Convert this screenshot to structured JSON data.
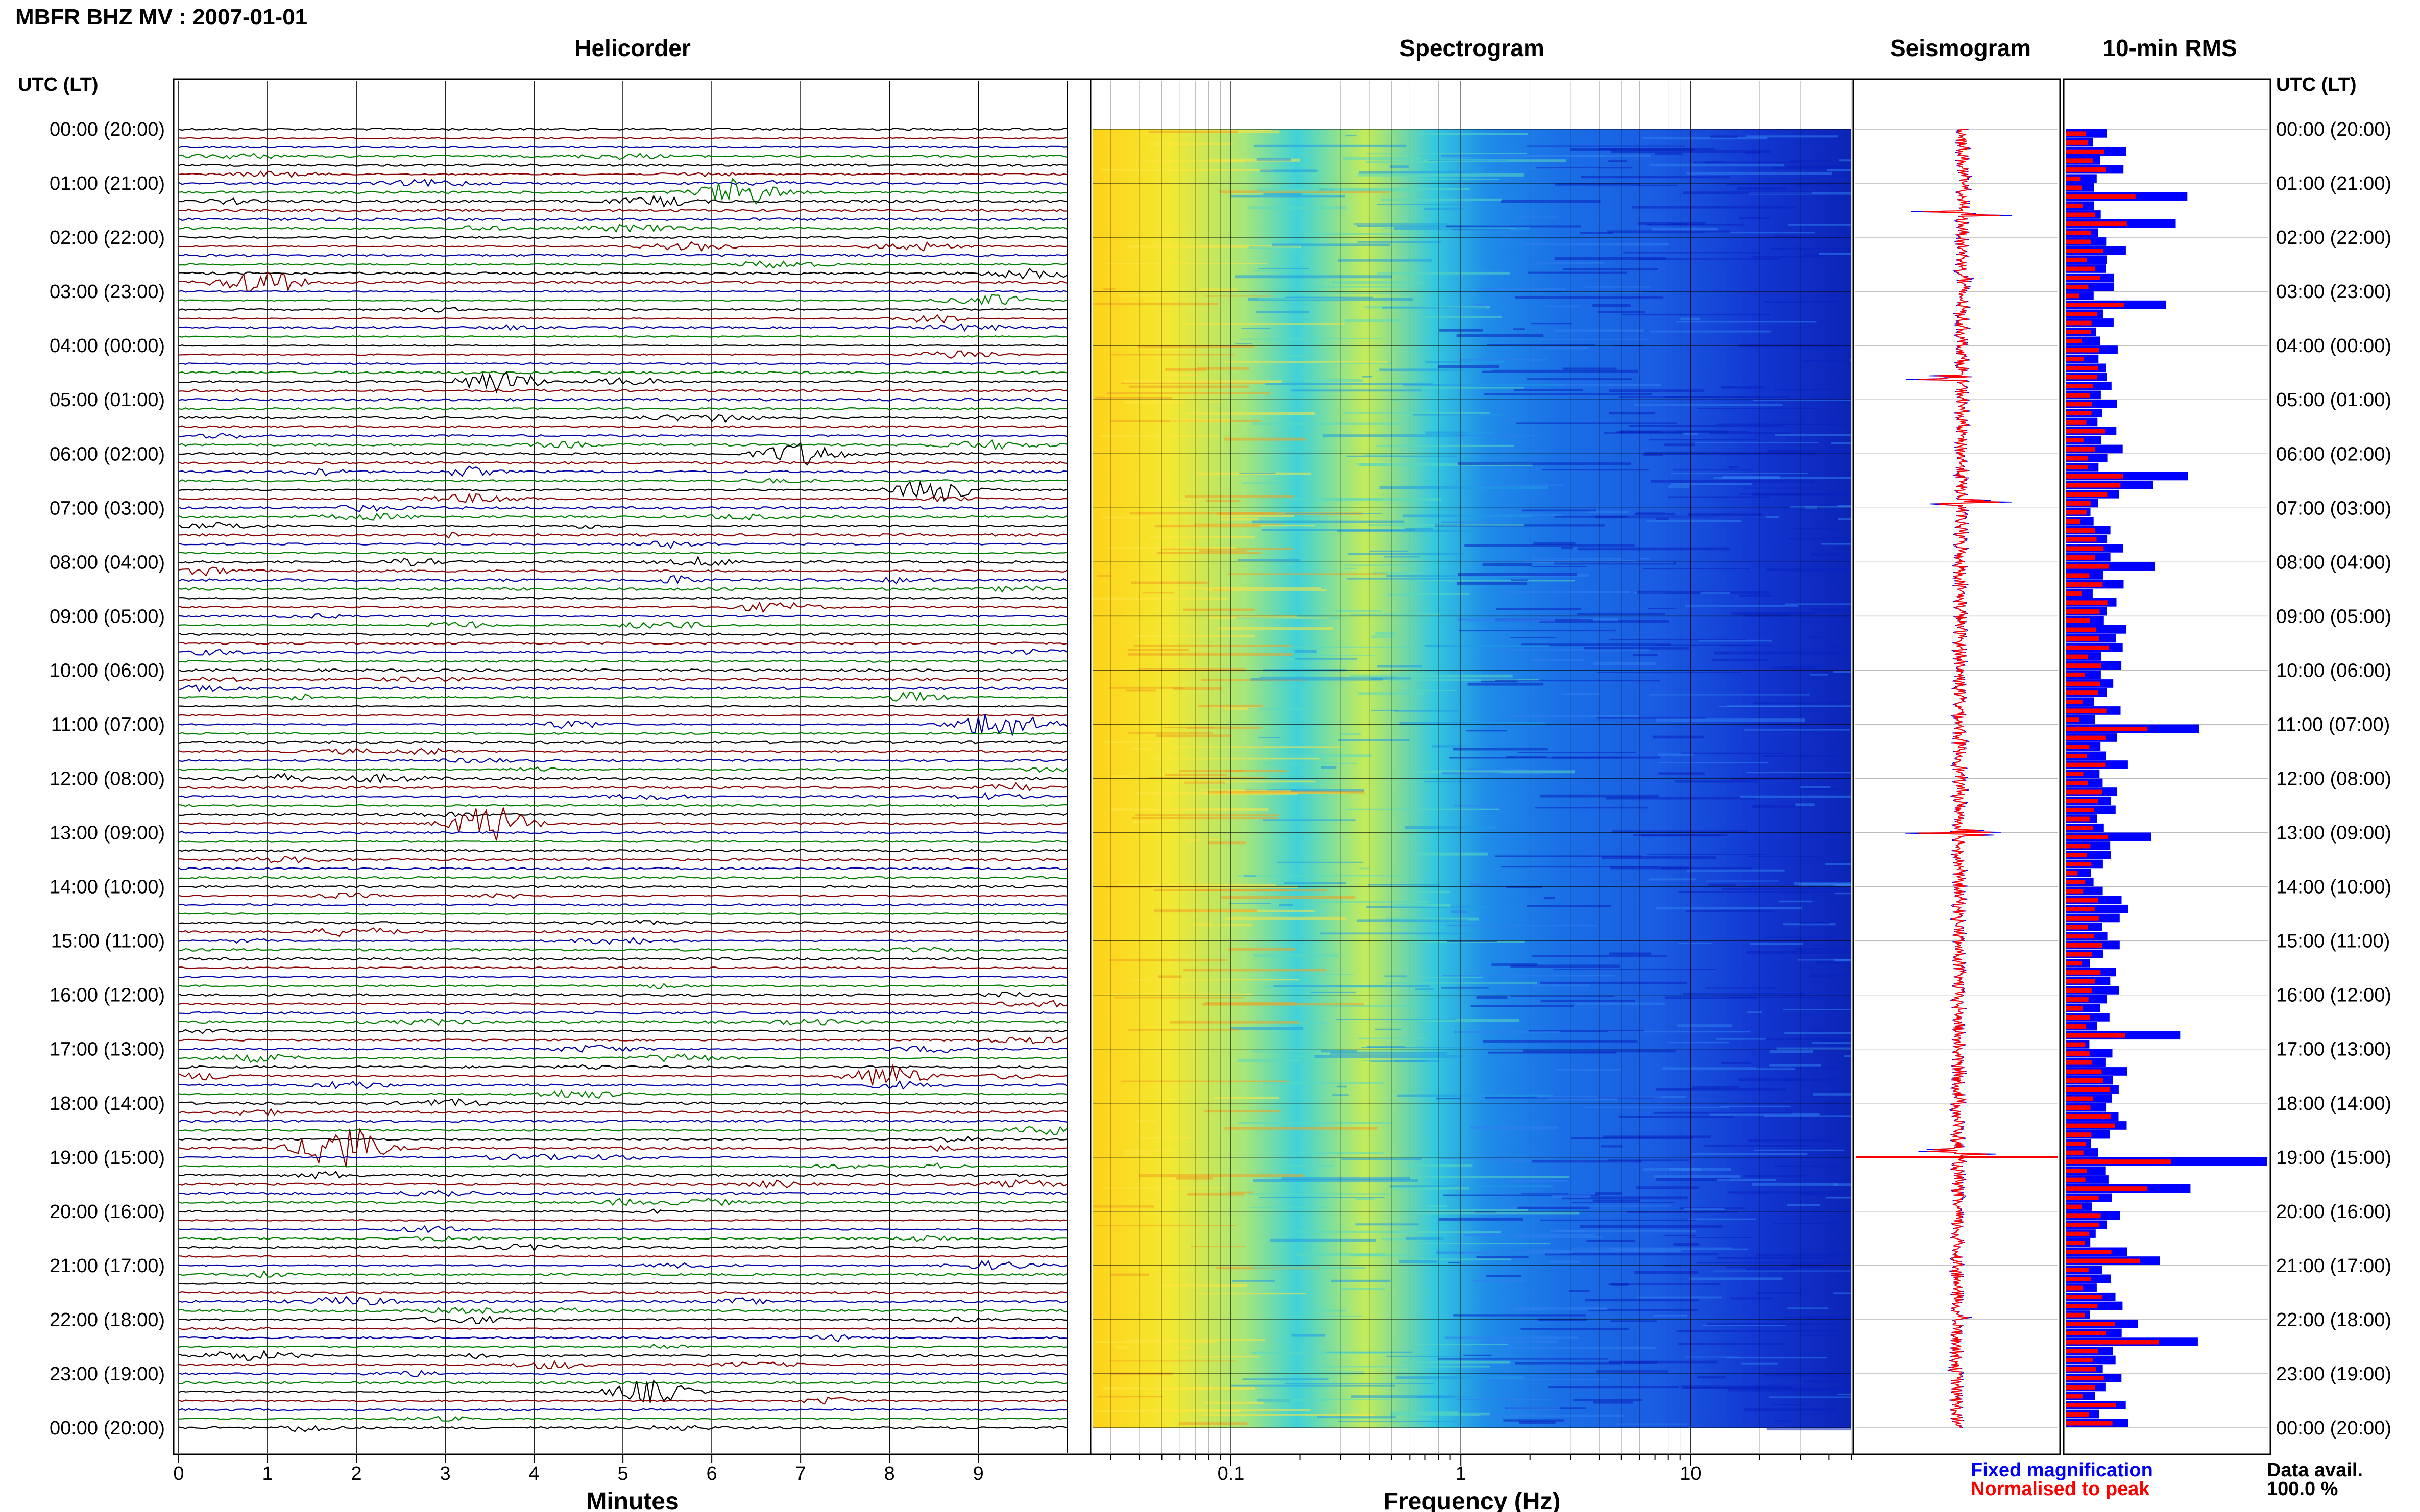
{
  "title": "MBFR BHZ MV : 2007-01-01",
  "panels": {
    "helicorder": "Helicorder",
    "spectrogram": "Spectrogram",
    "seismogram": "Seismogram",
    "rms": "10-min RMS"
  },
  "axis_header_left": "UTC (LT)",
  "axis_header_right": "UTC (LT)",
  "time_labels": [
    "00:00 (20:00)",
    "01:00 (21:00)",
    "02:00 (22:00)",
    "03:00 (23:00)",
    "04:00 (00:00)",
    "05:00 (01:00)",
    "06:00 (02:00)",
    "07:00 (03:00)",
    "08:00 (04:00)",
    "09:00 (05:00)",
    "10:00 (06:00)",
    "11:00 (07:00)",
    "12:00 (08:00)",
    "13:00 (09:00)",
    "14:00 (10:00)",
    "15:00 (11:00)",
    "16:00 (12:00)",
    "17:00 (13:00)",
    "18:00 (14:00)",
    "19:00 (15:00)",
    "20:00 (16:00)",
    "21:00 (17:00)",
    "22:00 (18:00)",
    "23:00 (19:00)",
    "00:00 (20:00)"
  ],
  "minutes_axis": {
    "label": "Minutes",
    "ticks": [
      "0",
      "1",
      "2",
      "3",
      "4",
      "5",
      "6",
      "7",
      "8",
      "9"
    ]
  },
  "frequency_axis": {
    "label": "Frequency (Hz)",
    "ticks": [
      "0.1",
      "1",
      "10"
    ]
  },
  "legend": {
    "fixed": "Fixed magnification",
    "normalised": "Normalised to peak",
    "fixed_color": "#0000ff",
    "normalised_color": "#ff0000"
  },
  "data_avail": {
    "label": "Data avail.",
    "value": "100.0 %"
  },
  "colors": {
    "trace_cycle": [
      "#000000",
      "#8b0000",
      "#0000aa",
      "#008000"
    ],
    "spectrogram_low": "#ffd21a",
    "spectrogram_mid": "#29c6e0",
    "spectrogram_high": "#0b2ed6"
  },
  "chart_data": {
    "type": "heatmap",
    "helicorder": {
      "lines_per_hour": 6,
      "minutes_per_line": 10,
      "notable_events": [
        {
          "hour": 1.1,
          "minute": 6.3,
          "amplitude": 3.0
        },
        {
          "hour": 2.8,
          "minute": 0.9,
          "amplitude": 2.8
        },
        {
          "hour": 4.6,
          "minute": 3.6,
          "amplitude": 2.5
        },
        {
          "hour": 6.0,
          "minute": 7.0,
          "amplitude": 2.5
        },
        {
          "hour": 6.7,
          "minute": 8.5,
          "amplitude": 2.5
        },
        {
          "hour": 11.0,
          "minute": 9.2,
          "amplitude": 3.0
        },
        {
          "hour": 12.8,
          "minute": 3.5,
          "amplitude": 4.0
        },
        {
          "hour": 17.5,
          "minute": 8.0,
          "amplitude": 2.5
        },
        {
          "hour": 18.8,
          "minute": 1.8,
          "amplitude": 5.5
        },
        {
          "hour": 23.3,
          "minute": 5.3,
          "amplitude": 2.5
        }
      ]
    },
    "spectrogram": {
      "frequency_range_hz": [
        0.025,
        50
      ],
      "log_scale": true,
      "hours": 24
    },
    "rms_10min": {
      "hours": 24,
      "bins_per_hour": 6,
      "peak_bins": [
        7,
        10,
        19,
        38,
        39,
        48,
        66,
        78,
        100,
        114,
        117,
        125,
        132,
        134
      ]
    }
  }
}
